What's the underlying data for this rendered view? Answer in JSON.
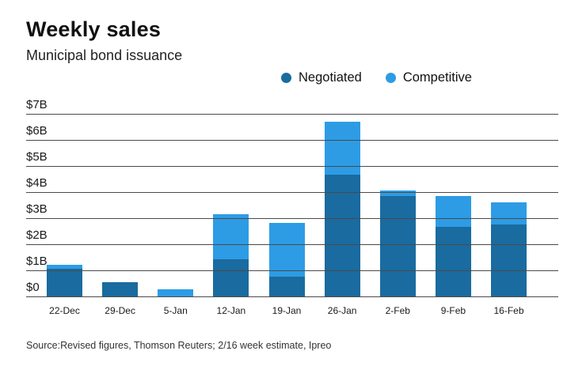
{
  "header": {
    "title": "Weekly sales",
    "subtitle": "Municipal bond issuance"
  },
  "legend": [
    {
      "label": "Negotiated",
      "color": "#1A6B9F"
    },
    {
      "label": "Competitive",
      "color": "#2D9CE5"
    }
  ],
  "source": "Source:Revised figures, Thomson Reuters; 2/16 week estimate, Ipreo",
  "chart_data": {
    "type": "bar",
    "stacked": true,
    "title": "Weekly sales",
    "subtitle": "Municipal bond issuance",
    "categories": [
      "22-Dec",
      "29-Dec",
      "5-Jan",
      "12-Jan",
      "19-Jan",
      "26-Jan",
      "2-Feb",
      "9-Feb",
      "16-Feb"
    ],
    "series": [
      {
        "name": "Negotiated",
        "color": "#1A6B9F",
        "values": [
          1.05,
          0.55,
          0.0,
          1.4,
          0.75,
          4.65,
          3.85,
          2.65,
          2.75
        ]
      },
      {
        "name": "Competitive",
        "color": "#2D9CE5",
        "values": [
          0.15,
          0.0,
          0.25,
          1.75,
          2.05,
          2.05,
          0.2,
          1.2,
          0.85
        ]
      }
    ],
    "totals": [
      1.2,
      0.55,
      0.25,
      3.15,
      2.8,
      6.7,
      4.05,
      3.85,
      3.6
    ],
    "units": "billions USD",
    "y_ticks": [
      "$0",
      "$1B",
      "$2B",
      "$3B",
      "$4B",
      "$5B",
      "$6B",
      "$7B"
    ],
    "ylim": [
      0,
      7
    ],
    "xlabel": "",
    "ylabel": "",
    "grid": true,
    "legend_position": "top-right"
  }
}
